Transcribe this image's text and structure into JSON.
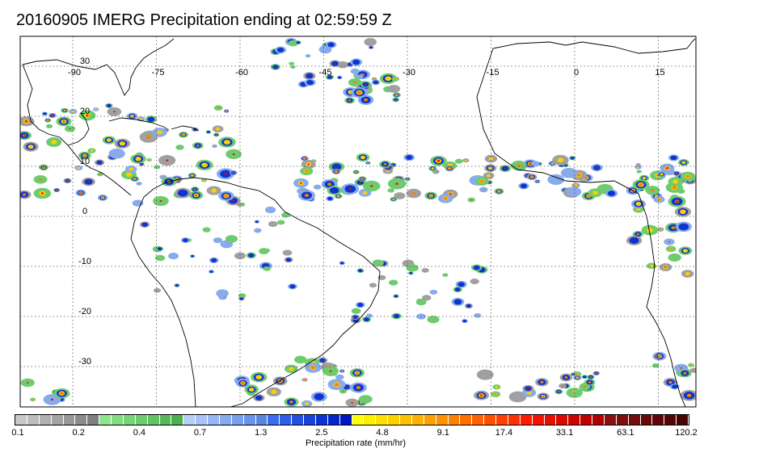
{
  "title": "20160905 IMERG Precipitation ending at 02:59:59 Z",
  "map": {
    "lon_labels": [
      "-90",
      "-75",
      "-60",
      "-45",
      "-30",
      "-15",
      "0",
      "15"
    ],
    "lat_labels": [
      "30",
      "20",
      "10",
      "0",
      "-10",
      "-20",
      "-30"
    ],
    "grid": "dotted",
    "coastline_color": "#000000"
  },
  "colorbar": {
    "label": "Precipitation rate (mm/hr)",
    "tick_labels": [
      "0.1",
      "0.2",
      "0.4",
      "0.7",
      "1.3",
      "2.5",
      "4.8",
      "9.1",
      "17.4",
      "33.1",
      "63.1",
      "120.2"
    ],
    "colors": [
      "#c8c8c8",
      "#bcbcbc",
      "#b0b0b0",
      "#a4a4a4",
      "#989898",
      "#8c8c8c",
      "#808080",
      "#8fe58f",
      "#84dc84",
      "#79d379",
      "#6ecb6e",
      "#63c263",
      "#58b958",
      "#4db04d",
      "#b8cff7",
      "#a8c3f4",
      "#98b7f0",
      "#88abed",
      "#789fe9",
      "#6893e6",
      "#5887e2",
      "#3a6cf0",
      "#2f5ee8",
      "#2450e0",
      "#1942d8",
      "#0e34d0",
      "#0426c8",
      "#0018c0",
      "#ffff00",
      "#fff000",
      "#ffe000",
      "#ffd000",
      "#ffc000",
      "#ffb000",
      "#ffa000",
      "#ff9000",
      "#ff8000",
      "#ff7000",
      "#ff6000",
      "#ff5000",
      "#ff4000",
      "#ff3000",
      "#ff1a00",
      "#f21400",
      "#e50f00",
      "#d80a00",
      "#cc0500",
      "#bf0000",
      "#b20000",
      "#8a1010",
      "#7f0e0e",
      "#740c0c",
      "#690a0a",
      "#5e0808",
      "#530606",
      "#480404"
    ]
  },
  "legend_colors": {
    "gray": "#a0a0a0",
    "green": "#6ecb6e",
    "light_blue": "#88abed",
    "blue": "#0e34d0",
    "yellow": "#ffd000",
    "orange": "#ff8000",
    "red": "#e50f00",
    "dark_red": "#690a0a"
  }
}
